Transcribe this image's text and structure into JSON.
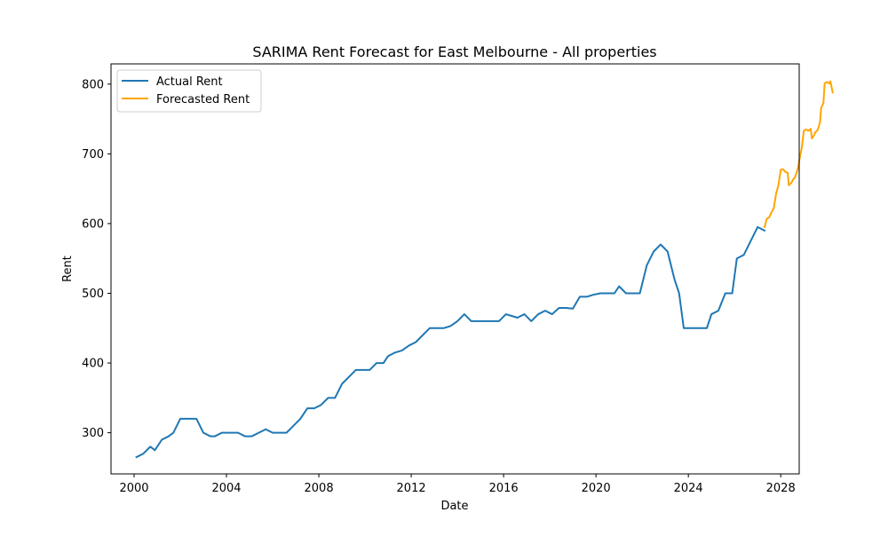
{
  "chart_data": {
    "type": "line",
    "title": "SARIMA Rent Forecast for East Melbourne - All properties",
    "xlabel": "Date",
    "ylabel": "Rent",
    "xlim": [
      1999.0,
      2028.8
    ],
    "ylim": [
      241,
      829
    ],
    "x_ticks": [
      2000,
      2004,
      2008,
      2012,
      2016,
      2020,
      2024,
      2028
    ],
    "x_tick_labels": [
      "2000",
      "2004",
      "2008",
      "2012",
      "2016",
      "2020",
      "2024",
      "2028"
    ],
    "y_ticks": [
      300,
      400,
      500,
      600,
      700,
      800
    ],
    "y_tick_labels": [
      "300",
      "400",
      "500",
      "600",
      "700",
      "800"
    ],
    "grid": false,
    "legend_position": "upper-left",
    "series": [
      {
        "name": "Actual Rent",
        "color": "#1f77b4",
        "points": [
          [
            2000.1,
            265
          ],
          [
            2000.4,
            270
          ],
          [
            2000.7,
            280
          ],
          [
            2000.9,
            275
          ],
          [
            2001.2,
            290
          ],
          [
            2001.5,
            295
          ],
          [
            2001.7,
            300
          ],
          [
            2002.0,
            320
          ],
          [
            2002.4,
            320
          ],
          [
            2002.7,
            320
          ],
          [
            2003.0,
            300
          ],
          [
            2003.3,
            295
          ],
          [
            2003.5,
            295
          ],
          [
            2003.8,
            300
          ],
          [
            2004.2,
            300
          ],
          [
            2004.5,
            300
          ],
          [
            2004.8,
            295
          ],
          [
            2005.1,
            295
          ],
          [
            2005.4,
            300
          ],
          [
            2005.7,
            305
          ],
          [
            2006.0,
            300
          ],
          [
            2006.3,
            300
          ],
          [
            2006.6,
            300
          ],
          [
            2006.9,
            310
          ],
          [
            2007.2,
            320
          ],
          [
            2007.5,
            335
          ],
          [
            2007.8,
            335
          ],
          [
            2008.1,
            340
          ],
          [
            2008.4,
            350
          ],
          [
            2008.7,
            350
          ],
          [
            2009.0,
            370
          ],
          [
            2009.3,
            380
          ],
          [
            2009.6,
            390
          ],
          [
            2009.9,
            390
          ],
          [
            2010.2,
            390
          ],
          [
            2010.5,
            400
          ],
          [
            2010.8,
            400
          ],
          [
            2011.0,
            410
          ],
          [
            2011.3,
            415
          ],
          [
            2011.6,
            418
          ],
          [
            2011.9,
            425
          ],
          [
            2012.2,
            430
          ],
          [
            2012.5,
            440
          ],
          [
            2012.8,
            450
          ],
          [
            2013.1,
            450
          ],
          [
            2013.4,
            450
          ],
          [
            2013.7,
            453
          ],
          [
            2014.0,
            460
          ],
          [
            2014.3,
            470
          ],
          [
            2014.6,
            460
          ],
          [
            2014.9,
            460
          ],
          [
            2015.2,
            460
          ],
          [
            2015.5,
            460
          ],
          [
            2015.8,
            460
          ],
          [
            2016.1,
            470
          ],
          [
            2016.3,
            468
          ],
          [
            2016.6,
            465
          ],
          [
            2016.9,
            470
          ],
          [
            2017.2,
            460
          ],
          [
            2017.5,
            470
          ],
          [
            2017.8,
            475
          ],
          [
            2018.1,
            470
          ],
          [
            2018.4,
            479
          ],
          [
            2018.7,
            479
          ],
          [
            2019.0,
            478
          ],
          [
            2019.3,
            495
          ],
          [
            2019.6,
            495
          ],
          [
            2019.9,
            498
          ],
          [
            2020.2,
            500
          ],
          [
            2020.5,
            500
          ],
          [
            2020.8,
            500
          ],
          [
            2021.0,
            510
          ],
          [
            2021.3,
            500
          ],
          [
            2021.6,
            500
          ],
          [
            2021.9,
            500
          ],
          [
            2022.2,
            540
          ],
          [
            2022.5,
            560
          ],
          [
            2022.8,
            570
          ],
          [
            2023.1,
            560
          ],
          [
            2023.4,
            520
          ],
          [
            2023.6,
            500
          ],
          [
            2023.8,
            450
          ],
          [
            2024.2,
            450
          ],
          [
            2024.5,
            450
          ],
          [
            2024.8,
            450
          ],
          [
            2025.0,
            470
          ],
          [
            2025.3,
            475
          ],
          [
            2025.6,
            500
          ],
          [
            2025.9,
            500
          ],
          [
            2026.1,
            550
          ],
          [
            2026.4,
            555
          ],
          [
            2026.7,
            575
          ],
          [
            2027.0,
            595
          ],
          [
            2027.3,
            590
          ]
        ]
      },
      {
        "name": "Forecasted Rent",
        "color": "#ffa500",
        "points": [
          [
            2027.3,
            595
          ],
          [
            2027.4,
            607
          ],
          [
            2027.5,
            609
          ],
          [
            2027.6,
            616
          ],
          [
            2027.7,
            622
          ],
          [
            2027.8,
            643
          ],
          [
            2027.9,
            655
          ],
          [
            2028.0,
            677
          ],
          [
            2028.1,
            678
          ],
          [
            2028.2,
            674
          ],
          [
            2028.3,
            673
          ],
          [
            2028.35,
            655
          ],
          [
            2028.45,
            658
          ],
          [
            2028.55,
            664
          ],
          [
            2028.6,
            665
          ],
          [
            2028.7,
            674
          ],
          [
            2028.75,
            680
          ],
          [
            2028.85,
            699
          ],
          [
            2028.9,
            706
          ],
          [
            2029.0,
            733
          ],
          [
            2029.1,
            735
          ],
          [
            2029.2,
            733
          ],
          [
            2029.3,
            736
          ],
          [
            2029.35,
            722
          ],
          [
            2029.45,
            727
          ],
          [
            2029.5,
            731
          ],
          [
            2029.6,
            734
          ],
          [
            2029.7,
            745
          ],
          [
            2029.75,
            766
          ],
          [
            2029.85,
            773
          ],
          [
            2029.9,
            801
          ],
          [
            2030.0,
            803
          ],
          [
            2030.1,
            801
          ],
          [
            2030.15,
            804
          ],
          [
            2030.25,
            788
          ]
        ]
      }
    ]
  }
}
